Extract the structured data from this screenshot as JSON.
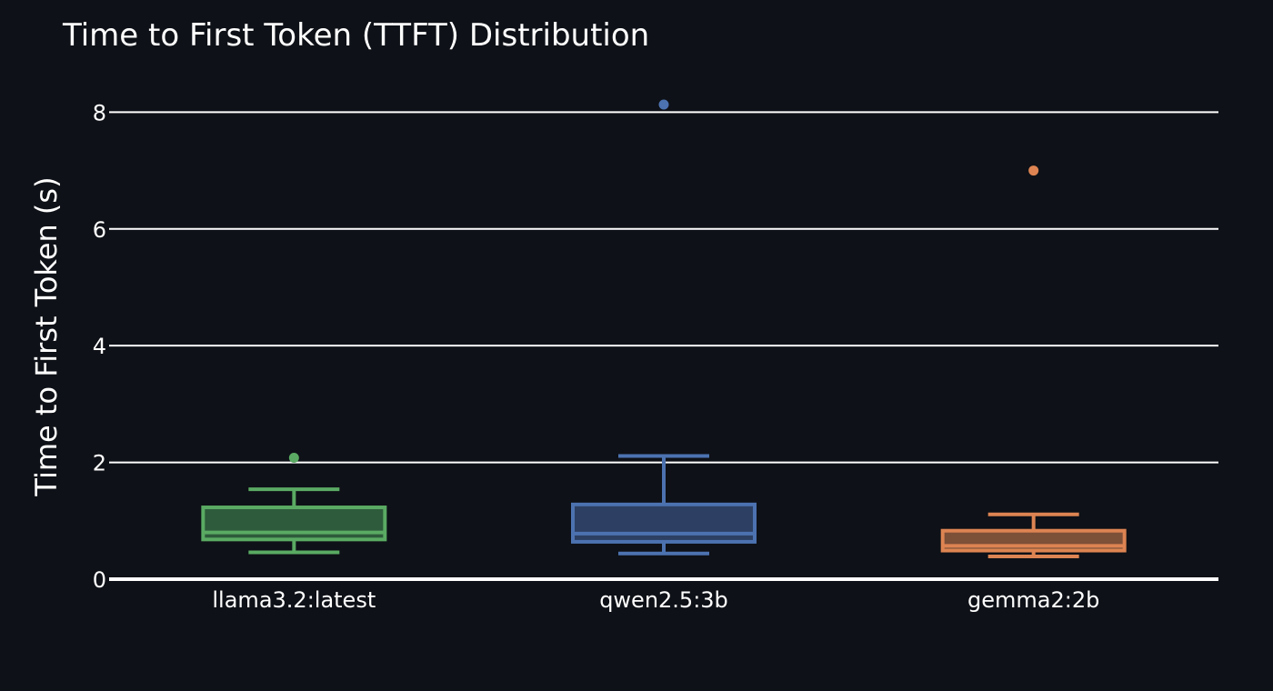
{
  "chart_data": {
    "type": "box",
    "title": "Time to First Token (TTFT) Distribution",
    "xlabel": "",
    "ylabel": "Time to First Token (s)",
    "ylim": [
      0,
      8.8
    ],
    "yticks": [
      0,
      2,
      4,
      6,
      8
    ],
    "grid": true,
    "legend": "none",
    "background": "#0e1117",
    "categories": [
      "llama3.2:latest",
      "qwen2.5:3b",
      "gemma2:2b"
    ],
    "series": [
      {
        "category": "llama3.2:latest",
        "color": "#5aaa63",
        "fill": "#2e5b3b",
        "min": 0.46,
        "q1": 0.68,
        "median": 0.8,
        "q3": 1.23,
        "max": 1.54,
        "outliers": [
          2.08
        ]
      },
      {
        "category": "qwen2.5:3b",
        "color": "#4c72b0",
        "fill": "#2d4063",
        "min": 0.44,
        "q1": 0.64,
        "median": 0.78,
        "q3": 1.28,
        "max": 2.11,
        "outliers": [
          8.13
        ]
      },
      {
        "category": "gemma2:2b",
        "color": "#dd8452",
        "fill": "#7d5038",
        "min": 0.39,
        "q1": 0.49,
        "median": 0.57,
        "q3": 0.83,
        "max": 1.11,
        "outliers": [
          7.0
        ]
      }
    ]
  }
}
